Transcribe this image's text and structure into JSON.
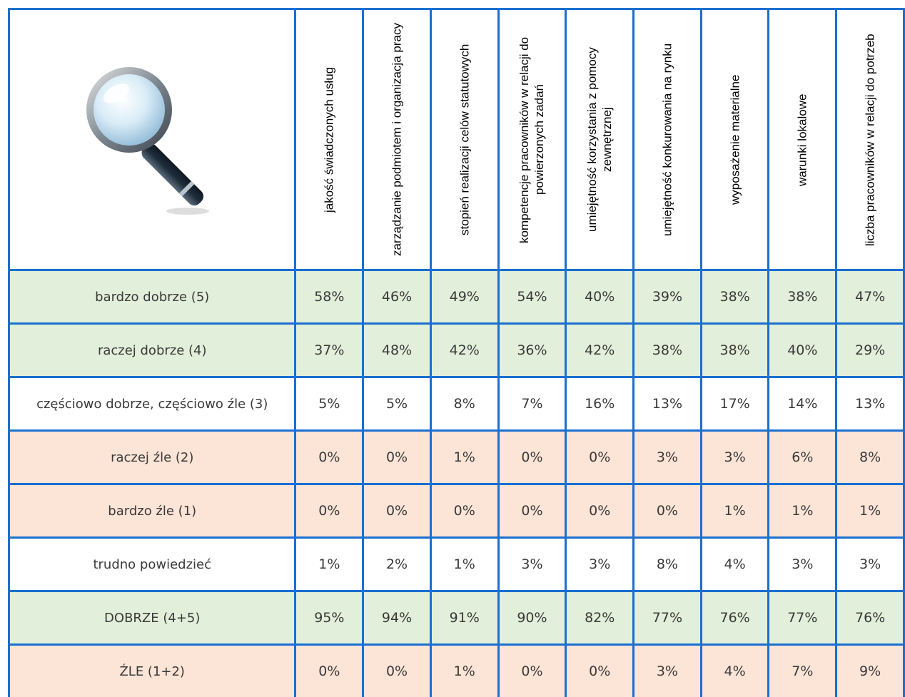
{
  "table": {
    "headers": [
      "jakość świadczonych usług",
      "zarządzanie podmiotem i organizacja pracy",
      "stopień realizacji celów statutowych",
      "kompetencje pracowników w relacji do powierzonych zadań",
      "umiejętność korzystania z pomocy zewnętrznej",
      "umiejętność konkurowania na rynku",
      "wyposażenie materialne",
      "warunki lokalowe",
      "liczba pracowników w relacji do potrzeb"
    ],
    "rows": [
      {
        "label": "bardzo dobrze (5)",
        "fill": "#e2efda",
        "values": [
          "58%",
          "46%",
          "49%",
          "54%",
          "40%",
          "39%",
          "38%",
          "38%",
          "47%"
        ]
      },
      {
        "label": "raczej dobrze (4)",
        "fill": "#e2efda",
        "values": [
          "37%",
          "48%",
          "42%",
          "36%",
          "42%",
          "38%",
          "38%",
          "40%",
          "29%"
        ]
      },
      {
        "label": "częściowo dobrze, częściowo źle (3)",
        "fill": "#ffffff",
        "values": [
          "5%",
          "5%",
          "8%",
          "7%",
          "16%",
          "13%",
          "17%",
          "14%",
          "13%"
        ]
      },
      {
        "label": "raczej źle (2)",
        "fill": "#fce4d6",
        "values": [
          "0%",
          "0%",
          "1%",
          "0%",
          "0%",
          "3%",
          "3%",
          "6%",
          "8%"
        ]
      },
      {
        "label": "bardzo źle (1)",
        "fill": "#fce4d6",
        "values": [
          "0%",
          "0%",
          "0%",
          "0%",
          "0%",
          "0%",
          "1%",
          "1%",
          "1%"
        ]
      },
      {
        "label": "trudno powiedzieć",
        "fill": "#ffffff",
        "values": [
          "1%",
          "2%",
          "1%",
          "3%",
          "3%",
          "8%",
          "4%",
          "3%",
          "3%"
        ]
      },
      {
        "label": "DOBRZE (4+5)",
        "fill": "#e2efda",
        "values": [
          "95%",
          "94%",
          "91%",
          "90%",
          "82%",
          "77%",
          "76%",
          "77%",
          "76%"
        ]
      },
      {
        "label": "ŹLE (1+2)",
        "fill": "#fce4d6",
        "values": [
          "0%",
          "0%",
          "1%",
          "0%",
          "0%",
          "3%",
          "4%",
          "7%",
          "9%"
        ]
      }
    ]
  }
}
